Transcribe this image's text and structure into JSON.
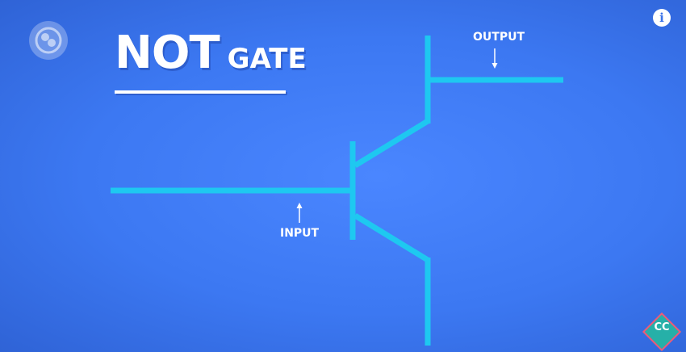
{
  "title": {
    "main": "NOT",
    "sub": "GATE"
  },
  "labels": {
    "output": "OUTPUT",
    "input": "INPUT"
  },
  "badges": {
    "info": "i",
    "cc": "CC"
  },
  "colors": {
    "background": "#3c78f2",
    "wire": "#1ec8f0",
    "text": "#ffffff",
    "cc_badge": "#26b0a8"
  },
  "icons": [
    "pbs-logo-icon",
    "info-icon",
    "cc-logo-icon",
    "up-arrow-icon",
    "down-arrow-icon"
  ]
}
